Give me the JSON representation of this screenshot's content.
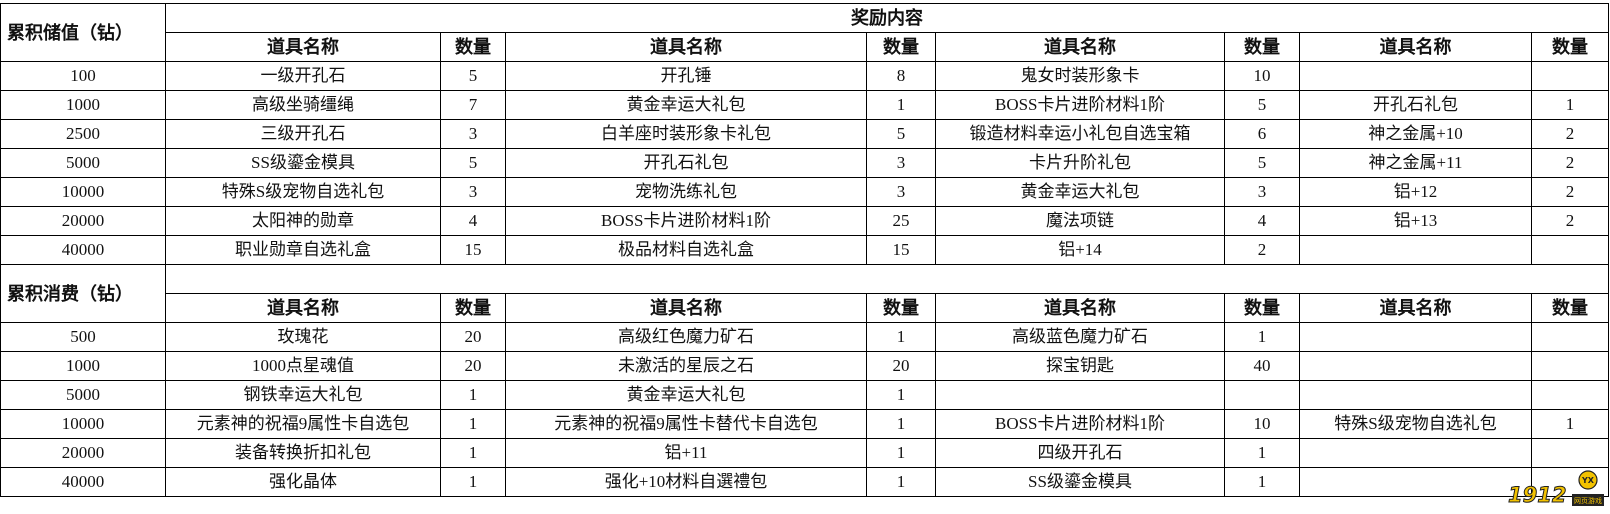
{
  "title": "奖励内容",
  "col_item": "道具名称",
  "col_qty": "数量",
  "sections": [
    {
      "label": "累积储值（钻）",
      "show_title": true,
      "rows": [
        {
          "threshold": "100",
          "items": [
            [
              "一级开孔石",
              "5"
            ],
            [
              "开孔锤",
              "8"
            ],
            [
              "鬼女时装形象卡",
              "10"
            ],
            [
              "",
              ""
            ]
          ]
        },
        {
          "threshold": "1000",
          "items": [
            [
              "高级坐骑缰绳",
              "7"
            ],
            [
              "黄金幸运大礼包",
              "1"
            ],
            [
              "BOSS卡片进阶材料1阶",
              "5"
            ],
            [
              "开孔石礼包",
              "1"
            ]
          ]
        },
        {
          "threshold": "2500",
          "items": [
            [
              "三级开孔石",
              "3"
            ],
            [
              "白羊座时装形象卡礼包",
              "5"
            ],
            [
              "锻造材料幸运小礼包自选宝箱",
              "6"
            ],
            [
              "神之金属+10",
              "2"
            ]
          ]
        },
        {
          "threshold": "5000",
          "items": [
            [
              "SS级鎏金模具",
              "5"
            ],
            [
              "开孔石礼包",
              "3"
            ],
            [
              "卡片升阶礼包",
              "5"
            ],
            [
              "神之金属+11",
              "2"
            ]
          ]
        },
        {
          "threshold": "10000",
          "items": [
            [
              "特殊S级宠物自选礼包",
              "3"
            ],
            [
              "宠物洗练礼包",
              "3"
            ],
            [
              "黄金幸运大礼包",
              "3"
            ],
            [
              "铝+12",
              "2"
            ]
          ]
        },
        {
          "threshold": "20000",
          "items": [
            [
              "太阳神的勋章",
              "4"
            ],
            [
              "BOSS卡片进阶材料1阶",
              "25"
            ],
            [
              "魔法项链",
              "4"
            ],
            [
              "铝+13",
              "2"
            ]
          ]
        },
        {
          "threshold": "40000",
          "items": [
            [
              "职业勋章自选礼盒",
              "15"
            ],
            [
              "极品材料自选礼盒",
              "15"
            ],
            [
              "铝+14",
              "2"
            ],
            [
              "",
              ""
            ]
          ]
        }
      ]
    },
    {
      "label": "累积消费（钻）",
      "show_title": false,
      "rows": [
        {
          "threshold": "500",
          "items": [
            [
              "玫瑰花",
              "20"
            ],
            [
              "高级红色魔力矿石",
              "1"
            ],
            [
              "高级蓝色魔力矿石",
              "1"
            ],
            [
              "",
              ""
            ]
          ]
        },
        {
          "threshold": "1000",
          "items": [
            [
              "1000点星魂值",
              "20"
            ],
            [
              "未激活的星辰之石",
              "20"
            ],
            [
              "探宝钥匙",
              "40"
            ],
            [
              "",
              ""
            ]
          ]
        },
        {
          "threshold": "5000",
          "items": [
            [
              "钢铁幸运大礼包",
              "1"
            ],
            [
              "黄金幸运大礼包",
              "1"
            ],
            [
              "",
              ""
            ],
            [
              "",
              ""
            ]
          ]
        },
        {
          "threshold": "10000",
          "items": [
            [
              "元素神的祝福9属性卡自选包",
              "1"
            ],
            [
              "元素神的祝福9属性卡替代卡自选包",
              "1"
            ],
            [
              "BOSS卡片进阶材料1阶",
              "10"
            ],
            [
              "特殊S级宠物自选礼包",
              "1"
            ]
          ]
        },
        {
          "threshold": "20000",
          "items": [
            [
              "装备转换折扣礼包",
              "1"
            ],
            [
              "铝+11",
              "1"
            ],
            [
              "四级开孔石",
              "1"
            ],
            [
              "",
              ""
            ]
          ]
        },
        {
          "threshold": "40000",
          "items": [
            [
              "强化晶体",
              "1"
            ],
            [
              "强化+10材料自選禮包",
              "1"
            ],
            [
              "SS级鎏金模具",
              "1"
            ],
            [
              "",
              ""
            ]
          ]
        }
      ]
    }
  ],
  "watermark": {
    "text": "1912",
    "badge": "YX",
    "sub": "网页游戏",
    "color": "#f2c200"
  }
}
